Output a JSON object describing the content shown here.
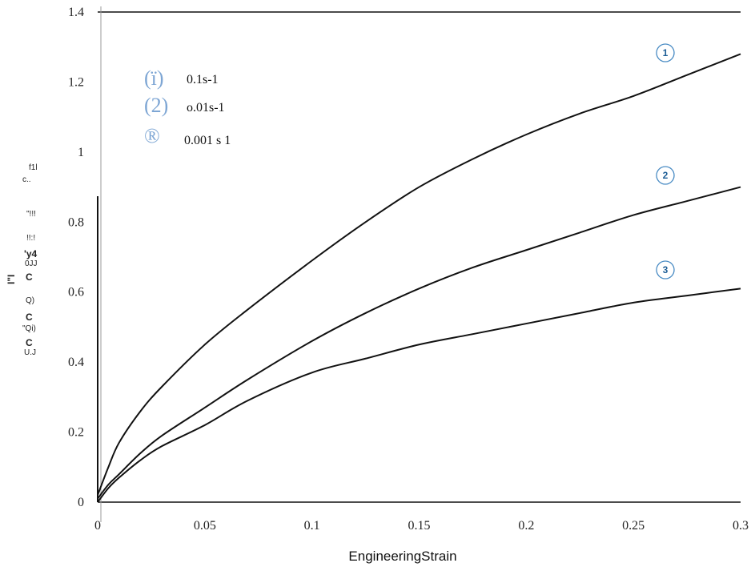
{
  "chart_data": {
    "type": "line",
    "title": "",
    "xlabel": "EngineeringStrain",
    "xlim": [
      0,
      0.3
    ],
    "ylim": [
      0,
      1.4
    ],
    "xticks": [
      0,
      0.05,
      0.1,
      0.15,
      0.2,
      0.25,
      0.3
    ],
    "xtick_labels": [
      "0",
      "0.05",
      "0.1",
      "0.15",
      "0.2",
      "0.25",
      "0.3"
    ],
    "yticks": [
      0,
      0.2,
      0.4,
      0.6,
      0.8,
      1,
      1.2,
      1.4
    ],
    "ytick_labels": [
      "0",
      "0.2",
      "0.4",
      "0.6",
      "0.8",
      "1",
      "1.2",
      "1.4"
    ],
    "ylabel_fragments": [
      "f1l",
      "c..",
      "\"!!!",
      "!!:!",
      "'y4",
      "0JJ",
      "C",
      "Q)",
      "C",
      "\"Qi)",
      "C",
      "U.J",
      "I\"I"
    ],
    "legend": [
      {
        "marker": "(ï)",
        "label": "0.1s-1"
      },
      {
        "marker": "(2)",
        "label": "o.01s-1"
      },
      {
        "marker": "®",
        "label": "0.001 s 1"
      }
    ],
    "curve_labels": [
      "1",
      "2",
      "3"
    ],
    "series": [
      {
        "x": [
          0,
          0.005,
          0.01,
          0.02,
          0.03,
          0.05,
          0.07,
          0.1,
          0.125,
          0.15,
          0.175,
          0.2,
          0.225,
          0.25,
          0.275,
          0.3
        ],
        "y": [
          0.02,
          0.1,
          0.17,
          0.26,
          0.33,
          0.45,
          0.55,
          0.69,
          0.8,
          0.9,
          0.98,
          1.05,
          1.11,
          1.16,
          1.22,
          1.28
        ]
      },
      {
        "x": [
          0,
          0.005,
          0.01,
          0.02,
          0.03,
          0.05,
          0.07,
          0.1,
          0.125,
          0.15,
          0.175,
          0.2,
          0.225,
          0.25,
          0.275,
          0.3
        ],
        "y": [
          0.01,
          0.05,
          0.08,
          0.14,
          0.19,
          0.27,
          0.35,
          0.46,
          0.54,
          0.61,
          0.67,
          0.72,
          0.77,
          0.82,
          0.86,
          0.9
        ]
      },
      {
        "x": [
          0,
          0.005,
          0.01,
          0.02,
          0.03,
          0.05,
          0.07,
          0.1,
          0.125,
          0.15,
          0.175,
          0.2,
          0.225,
          0.25,
          0.275,
          0.3
        ],
        "y": [
          0,
          0.04,
          0.07,
          0.12,
          0.16,
          0.22,
          0.29,
          0.37,
          0.41,
          0.45,
          0.48,
          0.51,
          0.54,
          0.57,
          0.59,
          0.61
        ]
      }
    ]
  },
  "colors": {
    "line": "#111111",
    "legend_marker": "#7ea6d4",
    "badge_stroke": "#4a8cc4",
    "badge_text": "#1f5f97"
  }
}
